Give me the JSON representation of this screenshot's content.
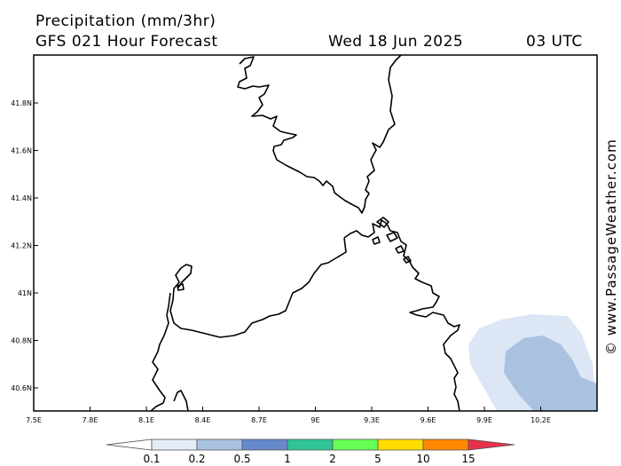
{
  "header": {
    "title": "Precipitation (mm/3hr)",
    "subtitle": "GFS 021 Hour Forecast",
    "date": "Wed 18 Jun 2025",
    "time": "03 UTC"
  },
  "watermark": "© www.PassageWeather.com",
  "map": {
    "lat_labels": [
      "41.8N",
      "41.6N",
      "41.4N",
      "41.2N",
      "41N",
      "40.8N",
      "40.6N"
    ],
    "lon_labels": [
      "7.5E",
      "7.8E",
      "8.1E",
      "8.4E",
      "8.7E",
      "9E",
      "9.3E",
      "9.6E",
      "9.9E",
      "10.2E"
    ],
    "coast_color": "#000000",
    "precip_light_color": "#dce6f4",
    "precip_mid_color": "#a9c2e0"
  },
  "legend": {
    "labels": [
      "0.1",
      "0.2",
      "0.5",
      "1",
      "2",
      "5",
      "10",
      "15"
    ],
    "colors": [
      "#ffffff",
      "#e3ecf7",
      "#a9c2e0",
      "#6688cc",
      "#2ec495",
      "#66ff55",
      "#ffdd00",
      "#ff8800",
      "#e8304a"
    ]
  }
}
